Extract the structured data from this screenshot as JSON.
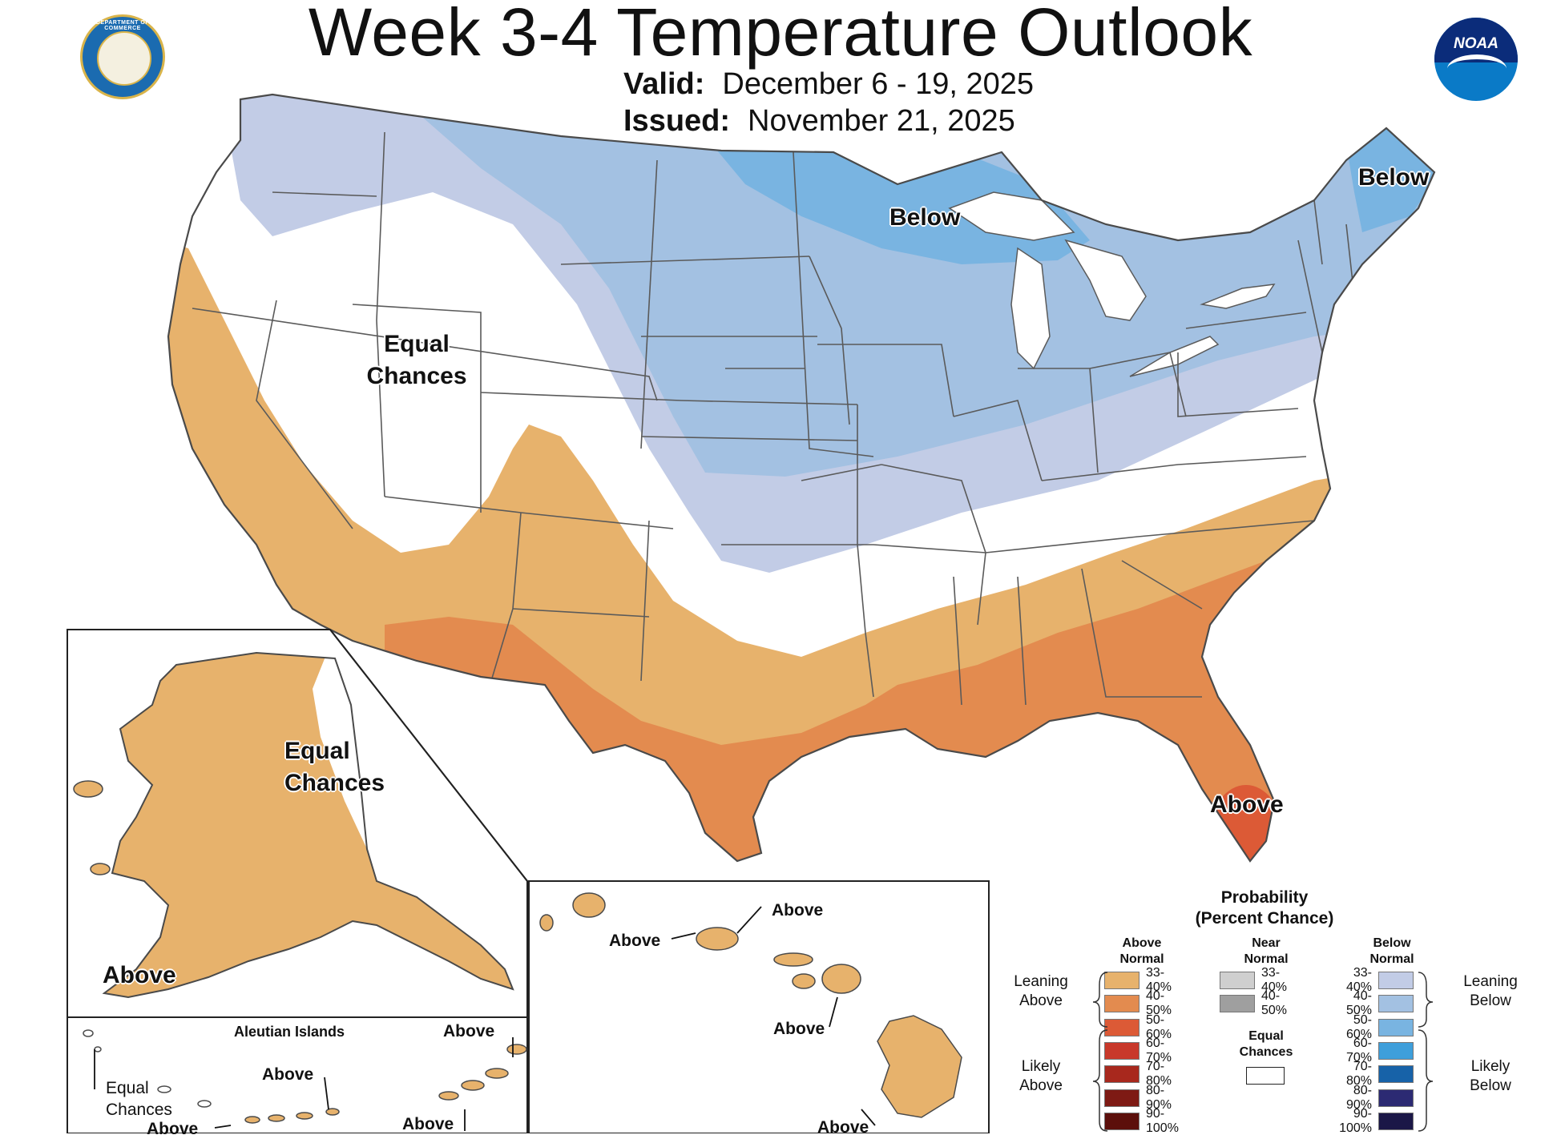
{
  "header": {
    "title": "Week 3-4 Temperature Outlook",
    "valid_label": "Valid:",
    "valid_dates": "December 6 - 19, 2025",
    "issued_label": "Issued:",
    "issued_date": "November 21, 2025"
  },
  "logos": {
    "left_icon": "department-of-commerce-seal-icon",
    "left_text": "DEPARTMENT OF COMMERCE",
    "right_icon": "noaa-logo-icon",
    "right_text": "NOAA"
  },
  "map_labels": {
    "conus_equal_line1": "Equal",
    "conus_equal_line2": "Chances",
    "conus_below_north": "Below",
    "conus_below_northeast": "Below",
    "conus_above_florida": "Above",
    "alaska_equal_line1": "Equal",
    "alaska_equal_line2": "Chances",
    "alaska_above": "Above",
    "aleutian_title": "Aleutian Islands",
    "aleutian_above_east": "Above",
    "aleutian_above_mid": "Above",
    "aleutian_equal_line1": "Equal",
    "aleutian_equal_line2": "Chances",
    "aleutian_above_west": "Above",
    "aleutian_above_bottom": "Above",
    "hawaii_above_oahu_right": "Above",
    "hawaii_above_oahu_left": "Above",
    "hawaii_above_maui": "Above",
    "hawaii_above_bigisland": "Above"
  },
  "legend": {
    "title_line1": "Probability",
    "title_line2": "(Percent Chance)",
    "above_head_line1": "Above",
    "above_head_line2": "Normal",
    "near_head_line1": "Near",
    "near_head_line2": "Normal",
    "below_head_line1": "Below",
    "below_head_line2": "Normal",
    "above_rows": [
      {
        "label": "33-40%",
        "color": "#e7b26c"
      },
      {
        "label": "40-50%",
        "color": "#e38b4f"
      },
      {
        "label": "50-60%",
        "color": "#dc5a36"
      },
      {
        "label": "60-70%",
        "color": "#c8382a"
      },
      {
        "label": "70-80%",
        "color": "#a8281d"
      },
      {
        "label": "80-90%",
        "color": "#7e1a14"
      },
      {
        "label": "90-100%",
        "color": "#5c0f0b"
      }
    ],
    "near_rows": [
      {
        "label": "33-40%",
        "color": "#cfcfcf"
      },
      {
        "label": "40-50%",
        "color": "#9f9f9f"
      }
    ],
    "below_rows": [
      {
        "label": "33-40%",
        "color": "#c2cce6"
      },
      {
        "label": "40-50%",
        "color": "#a3c1e2"
      },
      {
        "label": "50-60%",
        "color": "#79b4e1"
      },
      {
        "label": "60-70%",
        "color": "#3e9fdb"
      },
      {
        "label": "70-80%",
        "color": "#1762a8"
      },
      {
        "label": "80-90%",
        "color": "#2c2a73"
      },
      {
        "label": "90-100%",
        "color": "#1b1747"
      }
    ],
    "leaning_above_line1": "Leaning",
    "leaning_above_line2": "Above",
    "likely_above_line1": "Likely",
    "likely_above_line2": "Above",
    "leaning_below_line1": "Leaning",
    "leaning_below_line2": "Below",
    "likely_below_line1": "Likely",
    "likely_below_line2": "Below",
    "equal_chances_line1": "Equal",
    "equal_chances_line2": "Chances"
  },
  "colors": {
    "above_33_40": "#e7b26c",
    "above_40_50": "#e38b4f",
    "above_50_60": "#dc5a36",
    "below_33_40": "#c2cce6",
    "below_40_50": "#a3c1e2",
    "below_50_60": "#79b4e1",
    "equal_chances": "#ffffff",
    "border": "#5a5a5a"
  }
}
